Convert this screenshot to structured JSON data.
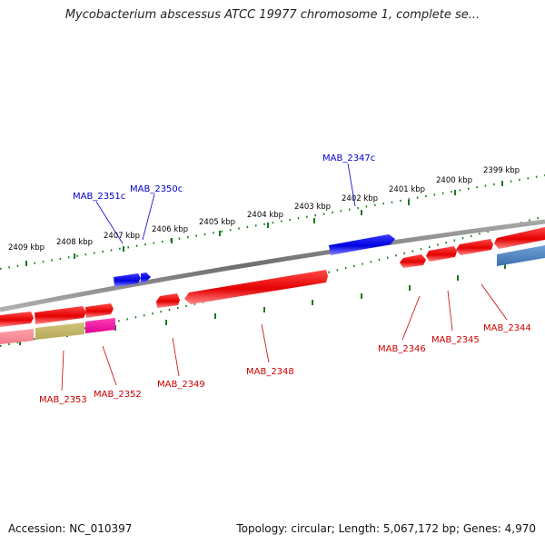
{
  "title": "Mycobacterium abscessus ATCC 19977 chromosome 1, complete se...",
  "footer": {
    "accession": "Accession: NC_010397",
    "summary": "Topology: circular; Length: 5,067,172 bp; Genes: 4,970"
  },
  "colors": {
    "backbone": "#808080",
    "tick": "#1a7a1a",
    "forward_gene": "#e00000",
    "reverse_gene": "#0000e0",
    "label_forward": "#cc0000",
    "label_reverse": "#0000cc"
  },
  "scale_labels": [
    "2409 kbp",
    "2408 kbp",
    "2407 kbp",
    "2406 kbp",
    "2405 kbp",
    "2404 kbp",
    "2403 kbp",
    "2402 kbp",
    "2401 kbp",
    "2400 kbp",
    "2399 kbp"
  ],
  "gene_labels": {
    "reverse": [
      "MAB_2351c",
      "MAB_2350c",
      "MAB_2347c"
    ],
    "forward": [
      "MAB_2353",
      "MAB_2352",
      "MAB_2349",
      "MAB_2348",
      "MAB_2346",
      "MAB_2345",
      "MAB_2344"
    ]
  }
}
